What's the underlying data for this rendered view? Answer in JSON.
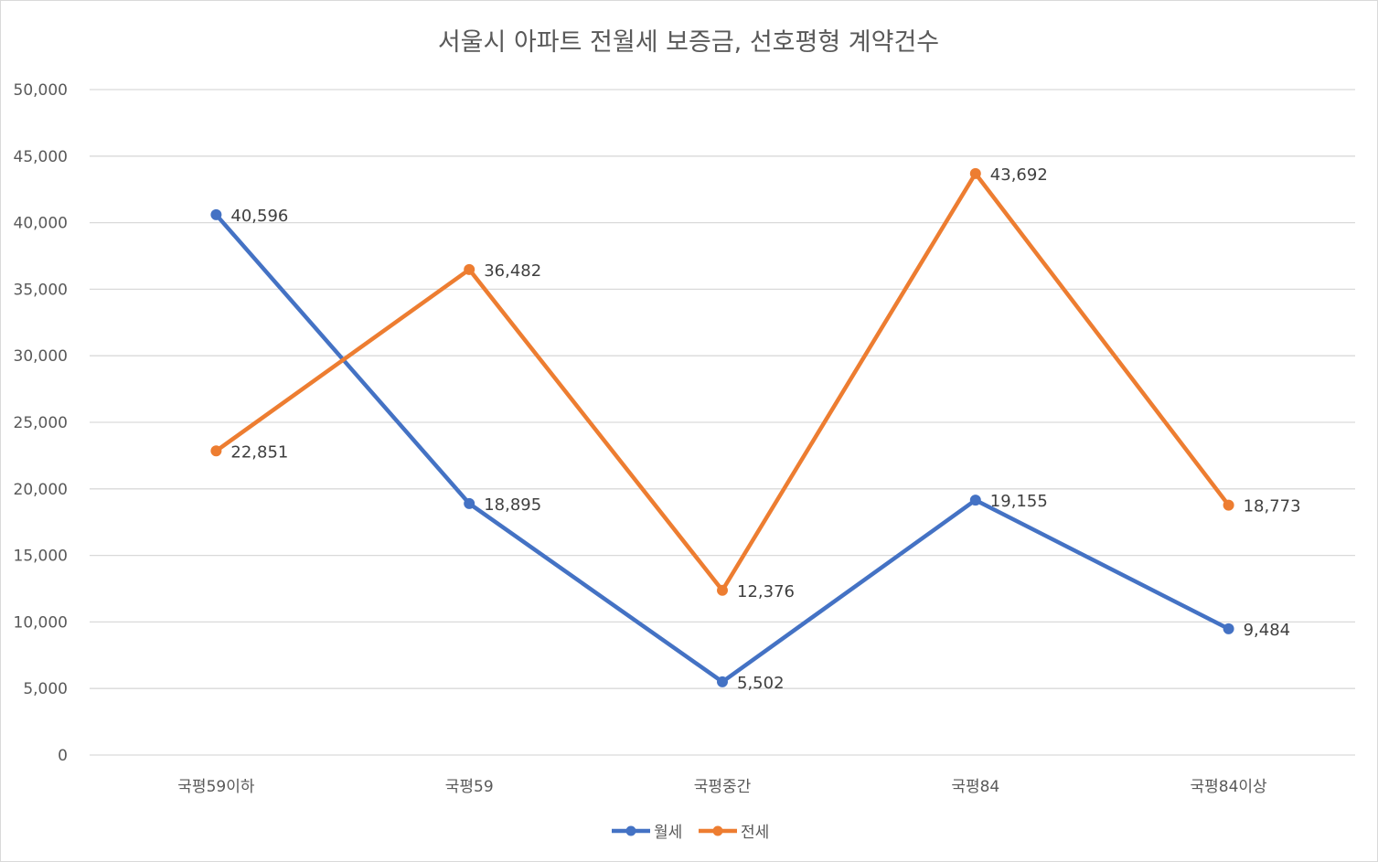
{
  "chart_data": {
    "type": "line",
    "title": "서울시 아파트 전월세 보증금, 선호평형 계약건수",
    "categories": [
      "국평59이하",
      "국평59",
      "국평중간",
      "국평84",
      "국평84이상"
    ],
    "ylim": [
      0,
      50000
    ],
    "ytick_step": 5000,
    "ytick_labels": [
      "0",
      "5,000",
      "10,000",
      "15,000",
      "20,000",
      "25,000",
      "30,000",
      "35,000",
      "40,000",
      "45,000",
      "50,000"
    ],
    "grid": true,
    "legend_position": "bottom",
    "series": [
      {
        "name": "월세",
        "color": "#4472c4",
        "values": [
          40596,
          18895,
          5502,
          19155,
          9484
        ],
        "labels": [
          "40,596",
          "18,895",
          "5,502",
          "19,155",
          "9,484"
        ]
      },
      {
        "name": "전세",
        "color": "#ed7d31",
        "values": [
          22851,
          36482,
          12376,
          43692,
          18773
        ],
        "labels": [
          "22,851",
          "36,482",
          "12,376",
          "43,692",
          "18,773"
        ]
      }
    ]
  }
}
